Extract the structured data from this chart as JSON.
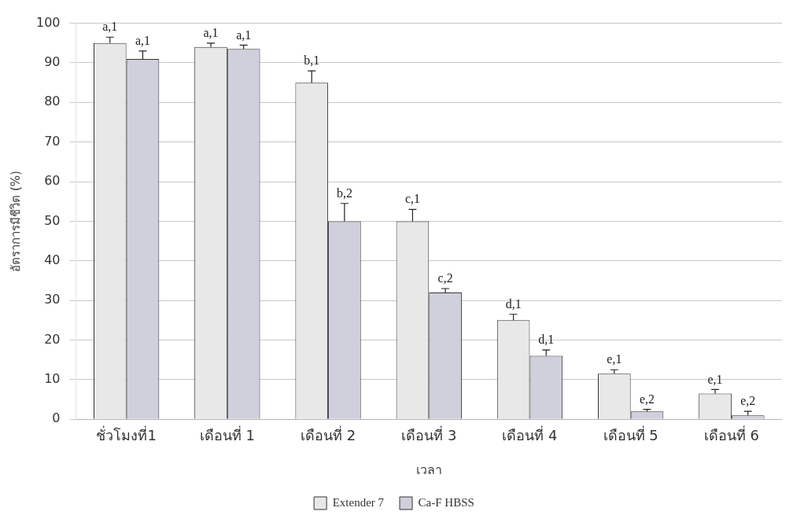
{
  "chart_data": {
    "type": "bar",
    "xlabel": "เวลา",
    "ylabel": "อัตราการมีชีวิต (%)",
    "categories": [
      "ชั่วโมงที่1",
      "เดือนที่ 1",
      "เดือนที่ 2",
      "เดือนที่ 3",
      "เดือนที่ 4",
      "เดือนที่ 5",
      "เดือนที่ 6"
    ],
    "series": [
      {
        "name": "Extender 7",
        "color": "#e8e8e8",
        "values": [
          95,
          94,
          85,
          50,
          25,
          11.5,
          6.5
        ],
        "errors": [
          1.5,
          1,
          3,
          3,
          1.5,
          1,
          1
        ]
      },
      {
        "name": "Ca-F HBSS",
        "color": "#d0d0dc",
        "values": [
          91,
          93.5,
          50,
          32,
          16,
          2,
          1
        ],
        "errors": [
          2,
          1,
          4.5,
          1,
          1.5,
          0.5,
          1
        ]
      }
    ],
    "annotations": [
      {
        "text": "a,1",
        "x": "ชั่วโมงที่1",
        "y": 95
      },
      {
        "text": "a,1",
        "x": "ชั่วโมงที่1",
        "y": 91
      },
      {
        "text": "a,1",
        "x": "เดือนที่ 1",
        "y": 94
      },
      {
        "text": "a,1",
        "x": "เดือนที่ 1",
        "y": 93.5
      },
      {
        "text": "b,1",
        "x": "เดือนที่ 2",
        "y": 85
      },
      {
        "text": "b,2",
        "x": "เดือนที่ 2",
        "y": 50
      },
      {
        "text": "c,1",
        "x": "เดือนที่ 3",
        "y": 50
      },
      {
        "text": "c,2",
        "x": "เดือนที่ 3",
        "y": 32
      },
      {
        "text": "d,1",
        "x": "เดือนที่ 4",
        "y": 25
      },
      {
        "text": "d,1",
        "x": "เดือนที่ 4",
        "y": 16
      },
      {
        "text": "e,1",
        "x": "เดือนที่ 5",
        "y": 11.5
      },
      {
        "text": "e,2",
        "x": "เดือนที่ 5",
        "y": 2
      },
      {
        "text": "e,1",
        "x": "เดือนที่ 6",
        "y": 6.5
      },
      {
        "text": "e,2",
        "x": "เดือนที่ 6",
        "y": 1
      }
    ],
    "ylim": [
      0,
      100
    ],
    "yticks": [
      0,
      10,
      20,
      30,
      40,
      50,
      60,
      70,
      80,
      90,
      100
    ],
    "grid": "y",
    "legend": "bottom"
  }
}
